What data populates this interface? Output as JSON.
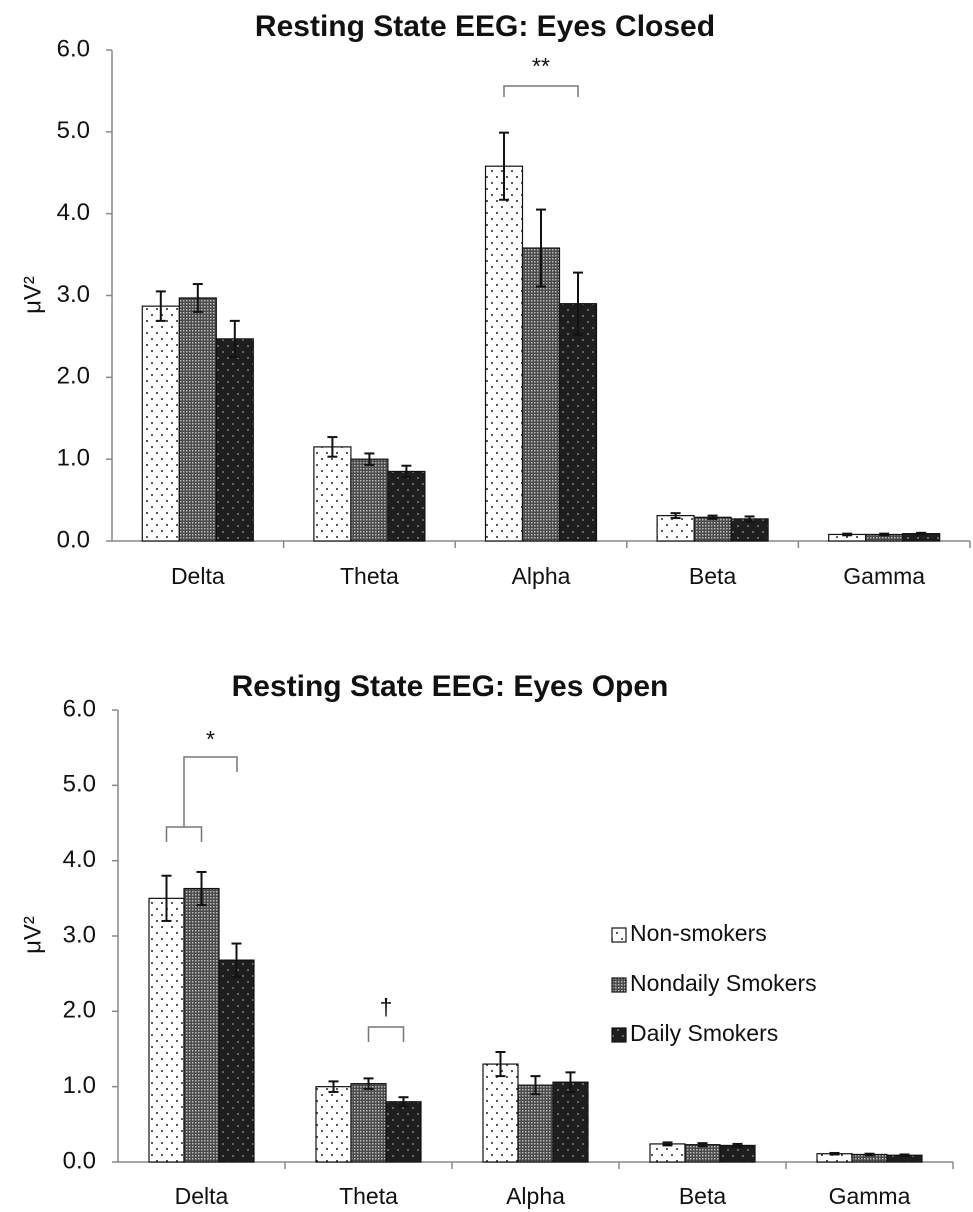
{
  "chart_data": [
    {
      "type": "bar",
      "title": "Resting State EEG: Eyes Closed",
      "ylabel": "μV²",
      "categories": [
        "Delta",
        "Theta",
        "Alpha",
        "Beta",
        "Gamma"
      ],
      "series": [
        {
          "color": "#ffffff",
          "values": [
            2.87,
            1.15,
            4.58,
            0.31,
            0.08
          ],
          "errors": [
            0.18,
            0.12,
            0.41,
            0.03,
            0.01
          ]
        },
        {
          "color": "#7a7a7a",
          "values": [
            2.97,
            1.0,
            3.58,
            0.29,
            0.08
          ],
          "errors": [
            0.17,
            0.07,
            0.47,
            0.02,
            0.01
          ]
        },
        {
          "color": "#1e1e1e",
          "values": [
            2.47,
            0.85,
            2.9,
            0.27,
            0.09
          ],
          "errors": [
            0.22,
            0.07,
            0.38,
            0.03,
            0.01
          ]
        }
      ],
      "ylim": [
        0,
        6
      ],
      "yticks": [
        {
          "value": 0,
          "label": "0.0"
        },
        {
          "value": 1,
          "label": "1.0"
        },
        {
          "value": 2,
          "label": "2.0"
        },
        {
          "value": 3,
          "label": "3.0"
        },
        {
          "value": 4,
          "label": "4.0"
        },
        {
          "value": 5,
          "label": "5.0"
        },
        {
          "value": 6,
          "label": "6.0"
        }
      ],
      "annotations": [
        "**"
      ]
    },
    {
      "type": "bar",
      "title": "Resting State EEG: Eyes Open",
      "ylabel": "μV²",
      "categories": [
        "Delta",
        "Theta",
        "Alpha",
        "Beta",
        "Gamma"
      ],
      "series": [
        {
          "name": "Non-smokers",
          "color": "#ffffff",
          "values": [
            3.5,
            1.0,
            1.3,
            0.24,
            0.11
          ],
          "errors": [
            0.3,
            0.07,
            0.16,
            0.02,
            0.01
          ]
        },
        {
          "name": "Nondaily Smokers",
          "color": "#7a7a7a",
          "values": [
            3.63,
            1.04,
            1.02,
            0.23,
            0.1
          ],
          "errors": [
            0.22,
            0.07,
            0.12,
            0.02,
            0.01
          ]
        },
        {
          "name": "Daily Smokers",
          "color": "#1e1e1e",
          "values": [
            2.68,
            0.8,
            1.06,
            0.22,
            0.09
          ],
          "errors": [
            0.22,
            0.06,
            0.13,
            0.02,
            0.01
          ]
        }
      ],
      "ylim": [
        0,
        6
      ],
      "yticks": [
        {
          "value": 0,
          "label": "0.0"
        },
        {
          "value": 1,
          "label": "1.0"
        },
        {
          "value": 2,
          "label": "2.0"
        },
        {
          "value": 3,
          "label": "3.0"
        },
        {
          "value": 4,
          "label": "4.0"
        },
        {
          "value": 5,
          "label": "5.0"
        },
        {
          "value": 6,
          "label": "6.0"
        }
      ],
      "legend": "right",
      "annotations": [
        "*",
        "†"
      ]
    }
  ]
}
